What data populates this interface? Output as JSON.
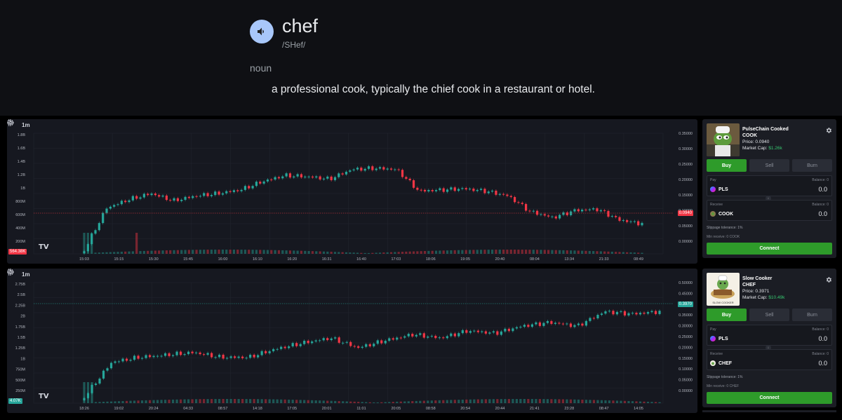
{
  "dictionary": {
    "word": "chef",
    "phonetic": "/SHef/",
    "part_of_speech": "noun",
    "definition": "a professional cook, typically the chief cook in a restaurant or hotel.",
    "speaker_icon": "volume-icon"
  },
  "charts": [
    {
      "interval": "1m",
      "current_price": "0.0940",
      "volume": "564.38K",
      "price_color": "#f23645",
      "volume_color": "#f23645",
      "left_axis": [
        "1.8B",
        "1.6B",
        "1.4B",
        "1.2B",
        "1B",
        "800M",
        "600M",
        "400M",
        "200M"
      ],
      "right_axis": [
        "0.35000",
        "0.30000",
        "0.25000",
        "0.20000",
        "0.15000",
        "0.10000",
        "0.05000",
        "0.00000"
      ],
      "time_labels": [
        "15:03",
        "15:15",
        "15:30",
        "15:45",
        "16:00",
        "16:10",
        "16:20",
        "16:31",
        "16:40",
        "17:03",
        "18:06",
        "19:05",
        "20:40",
        "08:04",
        "13:34",
        "21:33",
        "08:49"
      ]
    },
    {
      "interval": "1m",
      "current_price": "0.3970",
      "volume": "4.07K",
      "price_color": "#26a69a",
      "volume_color": "#26a69a",
      "left_axis": [
        "2.75B",
        "2.5B",
        "2.25B",
        "2B",
        "1.75B",
        "1.5B",
        "1.25B",
        "1B",
        "750M",
        "500M",
        "250M"
      ],
      "right_axis": [
        "0.50000",
        "0.45000",
        "0.40000",
        "0.35000",
        "0.30000",
        "0.25000",
        "0.20000",
        "0.15000",
        "0.10000",
        "0.05000",
        "0.00000"
      ],
      "time_labels": [
        "18:26",
        "19:02",
        "20:24",
        "04:33",
        "08:57",
        "14:18",
        "17:05",
        "20:01",
        "11:01",
        "20:05",
        "08:58",
        "20:54",
        "20:44",
        "21:41",
        "23:28",
        "08:47",
        "14:05"
      ]
    }
  ],
  "panels": [
    {
      "name": "PulseChain Cooked",
      "ticker": "COOK",
      "price_label": "Price: ",
      "price": "0.0940",
      "mcap_label": "Market Cap: ",
      "mcap": "$1.26k",
      "tabs": [
        "Buy",
        "Sell",
        "Burn"
      ],
      "pay_label": "Pay",
      "pay_balance": "Balance: 0",
      "pay_token": "PLS",
      "pay_amount": "0.0",
      "receive_label": "Receive",
      "receive_balance": "Balance: 0",
      "receive_token": "COOK",
      "receive_amount": "0.0",
      "slippage": "Slippage tolerance: 1%",
      "min_receive": "Min receive: 0 COOK",
      "connect": "Connect"
    },
    {
      "name": "Slow Cooker",
      "ticker": "CHEF",
      "price_label": "Price: ",
      "price": "0.3971",
      "mcap_label": "Market Cap: ",
      "mcap": "$10.49k",
      "image_caption": "SLOW COOKER",
      "tabs": [
        "Buy",
        "Sell",
        "Burn"
      ],
      "pay_label": "Pay",
      "pay_balance": "Balance: 0",
      "pay_token": "PLS",
      "pay_amount": "0.0",
      "receive_label": "Receive",
      "receive_balance": "Balance: 0",
      "receive_token": "CHEF",
      "receive_amount": "0.0",
      "slippage": "Slippage tolerance: 1%",
      "min_receive": "Min receive: 0 CHEF",
      "connect": "Connect"
    }
  ],
  "colors": {
    "up": "#26a69a",
    "down": "#f23645",
    "accent_green": "#2e9b2a",
    "speaker_bg": "#a8c7fa"
  }
}
